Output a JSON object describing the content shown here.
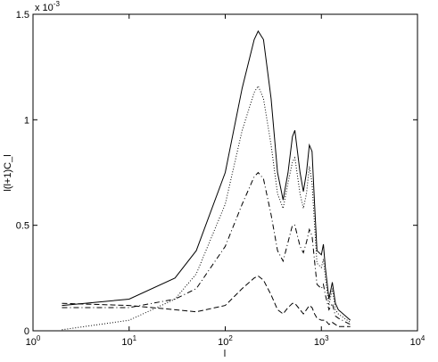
{
  "chart_data": {
    "type": "line",
    "x_label": "l",
    "y_label": "l(l+1)C_l",
    "y_scale_label": "x 10^-3",
    "log_x": true,
    "grid": false,
    "x": [
      2,
      10,
      30,
      50,
      100,
      150,
      200,
      220,
      250,
      300,
      350,
      400,
      450,
      500,
      530,
      600,
      650,
      700,
      750,
      800,
      850,
      900,
      1000,
      1050,
      1100,
      1200,
      1300,
      1400,
      1500,
      2000
    ],
    "series": [
      {
        "color": "#000000",
        "dash": "solid",
        "values": [
          0.12,
          0.15,
          0.25,
          0.38,
          0.75,
          1.15,
          1.38,
          1.42,
          1.38,
          1.1,
          0.75,
          0.62,
          0.75,
          0.92,
          0.95,
          0.75,
          0.66,
          0.75,
          0.88,
          0.85,
          0.6,
          0.38,
          0.36,
          0.41,
          0.3,
          0.15,
          0.23,
          0.13,
          0.1,
          0.05
        ]
      },
      {
        "color": "#000000",
        "dash": "dotted",
        "values": [
          0.005,
          0.05,
          0.15,
          0.27,
          0.6,
          0.95,
          1.13,
          1.16,
          1.1,
          0.88,
          0.65,
          0.58,
          0.7,
          0.8,
          0.82,
          0.65,
          0.58,
          0.65,
          0.78,
          0.7,
          0.5,
          0.32,
          0.3,
          0.34,
          0.25,
          0.12,
          0.2,
          0.1,
          0.08,
          0.04
        ]
      },
      {
        "color": "#000000",
        "dash": "dashdot",
        "values": [
          0.11,
          0.11,
          0.15,
          0.2,
          0.4,
          0.6,
          0.73,
          0.75,
          0.72,
          0.55,
          0.38,
          0.33,
          0.42,
          0.5,
          0.5,
          0.4,
          0.37,
          0.42,
          0.48,
          0.45,
          0.33,
          0.22,
          0.2,
          0.22,
          0.17,
          0.1,
          0.13,
          0.07,
          0.06,
          0.03
        ]
      },
      {
        "color": "#000000",
        "dash": "dashed",
        "values": [
          0.13,
          0.12,
          0.1,
          0.09,
          0.12,
          0.2,
          0.25,
          0.26,
          0.24,
          0.17,
          0.1,
          0.08,
          0.11,
          0.13,
          0.13,
          0.1,
          0.08,
          0.1,
          0.12,
          0.11,
          0.08,
          0.06,
          0.05,
          0.05,
          0.05,
          0.03,
          0.04,
          0.03,
          0.02,
          0.02
        ]
      }
    ],
    "xlim": [
      1,
      10000
    ],
    "xticks": [
      {
        "value": 1,
        "label": "10^0"
      },
      {
        "value": 10,
        "label": "10^1"
      },
      {
        "value": 100,
        "label": "10^2"
      },
      {
        "value": 1000,
        "label": "10^3"
      },
      {
        "value": 10000,
        "label": "10^4"
      }
    ],
    "ylim": [
      0,
      1.5
    ],
    "yticks": [
      0,
      0.5,
      1,
      1.5
    ]
  }
}
